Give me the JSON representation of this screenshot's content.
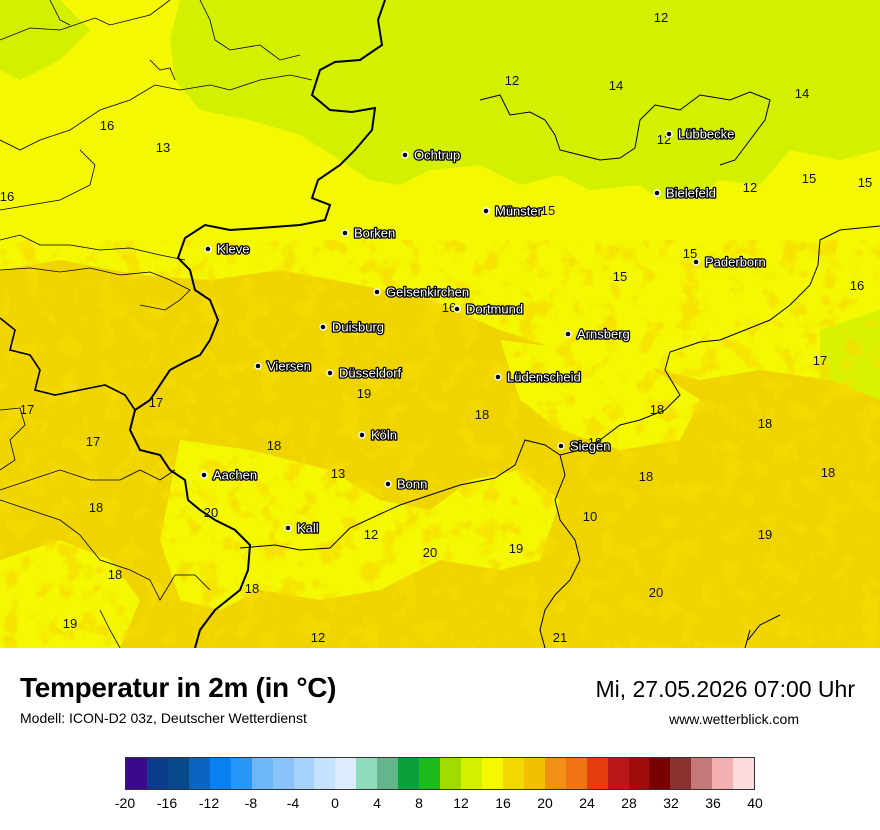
{
  "title": "Temperatur in 2m (in °C)",
  "model": "Modell: ICON-D2 03z, Deutscher Wetterdienst",
  "datetime": "Mi, 27.05.2026 07:00 Uhr",
  "website": "www.wetterblick.com",
  "colors": {
    "green": "#d2f000",
    "yellow": "#f4f800",
    "orange": "#f0d400",
    "deep_orange": "#e8b400",
    "border": "#000000"
  },
  "cities": [
    {
      "name": "Ochtrup"
    },
    {
      "name": "Lübbecke"
    },
    {
      "name": "Bielefeld"
    },
    {
      "name": "Münster"
    },
    {
      "name": "Borken"
    },
    {
      "name": "Kleve"
    },
    {
      "name": "Paderborn"
    },
    {
      "name": "Gelsenkirchen"
    },
    {
      "name": "Dortmund"
    },
    {
      "name": "Duisburg"
    },
    {
      "name": "Arnsberg"
    },
    {
      "name": "Viersen"
    },
    {
      "name": "Düsseldorf"
    },
    {
      "name": "Lüdenscheid"
    },
    {
      "name": "Köln"
    },
    {
      "name": "Siegen"
    },
    {
      "name": "Aachen"
    },
    {
      "name": "Bonn"
    },
    {
      "name": "Kall"
    }
  ],
  "values": [
    "12",
    "12",
    "14",
    "14",
    "16",
    "13",
    "12",
    "12",
    "15",
    "15",
    "16",
    "15",
    "15",
    "15",
    "16",
    "16",
    "17",
    "17",
    "17",
    "17",
    "19",
    "18",
    "18",
    "18",
    "18",
    "18",
    "18",
    "18",
    "18",
    "13",
    "20",
    "10",
    "12",
    "19",
    "20",
    "19",
    "18",
    "18",
    "20",
    "19",
    "21",
    "12"
  ],
  "legend": {
    "colors": [
      "#3a0a8a",
      "#0c3c8c",
      "#064a8c",
      "#0a64c0",
      "#0a80f0",
      "#2898f8",
      "#6cb8fa",
      "#88c4fa",
      "#a4d2fc",
      "#c4e2fc",
      "#dcecfc",
      "#90dcbc",
      "#64b48c",
      "#0aa03c",
      "#1cbc1c",
      "#a0dc00",
      "#d2f000",
      "#f4f800",
      "#f2d800",
      "#f2c000",
      "#f09014",
      "#f07414",
      "#e43c0c",
      "#b81818",
      "#a00c0c",
      "#780000",
      "#8c3030",
      "#c47878",
      "#f4b0b0",
      "#fcdcdc"
    ],
    "ticks": [
      "-20",
      "-16",
      "-12",
      "-8",
      "-4",
      "0",
      "4",
      "8",
      "12",
      "16",
      "20",
      "24",
      "28",
      "32",
      "36",
      "40"
    ]
  }
}
